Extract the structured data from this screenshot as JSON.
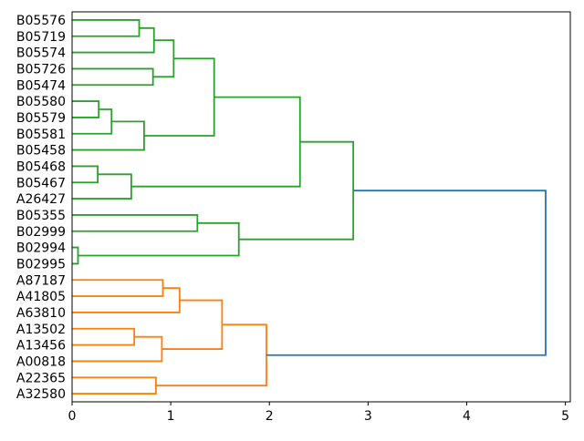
{
  "chart_data": {
    "type": "dendrogram",
    "orientation": "right",
    "title": "",
    "xlabel": "",
    "ylabel": "",
    "xlim": [
      0,
      5.05
    ],
    "x_ticks": [
      0,
      1,
      2,
      3,
      4,
      5
    ],
    "grid": false,
    "legend": false,
    "colors": {
      "green": "#2ca02c",
      "orange": "#ff7f0e",
      "blue": "#1f77b4",
      "axes": "#000000",
      "background": "#ffffff"
    },
    "leaves": [
      "B05576",
      "B05719",
      "B05574",
      "B05726",
      "B05474",
      "B05580",
      "B05579",
      "B05581",
      "B05458",
      "B05468",
      "B05467",
      "A26427",
      "B05355",
      "B02999",
      "B02994",
      "B02995",
      "A87187",
      "A41805",
      "A63810",
      "A13502",
      "A13456",
      "A00818",
      "A22365",
      "A32580"
    ],
    "merges": [
      {
        "a": "B05576",
        "b": "B05719",
        "d": 0.68,
        "c": "green"
      },
      {
        "a": 0,
        "b": "B05574",
        "d": 0.83,
        "c": "green"
      },
      {
        "a": "B05726",
        "b": "B05474",
        "d": 0.82,
        "c": "green"
      },
      {
        "a": 1,
        "b": 2,
        "d": 1.03,
        "c": "green"
      },
      {
        "a": "B05580",
        "b": "B05579",
        "d": 0.27,
        "c": "green"
      },
      {
        "a": 4,
        "b": "B05581",
        "d": 0.4,
        "c": "green"
      },
      {
        "a": 5,
        "b": "B05458",
        "d": 0.73,
        "c": "green"
      },
      {
        "a": 3,
        "b": 6,
        "d": 1.44,
        "c": "green"
      },
      {
        "a": "B05468",
        "b": "B05467",
        "d": 0.26,
        "c": "green"
      },
      {
        "a": 8,
        "b": "A26427",
        "d": 0.6,
        "c": "green"
      },
      {
        "a": 7,
        "b": 9,
        "d": 2.31,
        "c": "green"
      },
      {
        "a": "B05355",
        "b": "B02999",
        "d": 1.27,
        "c": "green"
      },
      {
        "a": "B02994",
        "b": "B02995",
        "d": 0.06,
        "c": "green"
      },
      {
        "a": 11,
        "b": 12,
        "d": 1.69,
        "c": "green"
      },
      {
        "a": 10,
        "b": 13,
        "d": 2.85,
        "c": "green"
      },
      {
        "a": "A87187",
        "b": "A41805",
        "d": 0.92,
        "c": "orange"
      },
      {
        "a": 15,
        "b": "A63810",
        "d": 1.09,
        "c": "orange"
      },
      {
        "a": "A13502",
        "b": "A13456",
        "d": 0.63,
        "c": "orange"
      },
      {
        "a": 17,
        "b": "A00818",
        "d": 0.91,
        "c": "orange"
      },
      {
        "a": 16,
        "b": 18,
        "d": 1.52,
        "c": "orange"
      },
      {
        "a": "A22365",
        "b": "A32580",
        "d": 0.85,
        "c": "orange"
      },
      {
        "a": 19,
        "b": 20,
        "d": 1.97,
        "c": "orange"
      },
      {
        "a": 14,
        "b": 21,
        "d": 4.8,
        "c": "blue"
      }
    ]
  }
}
